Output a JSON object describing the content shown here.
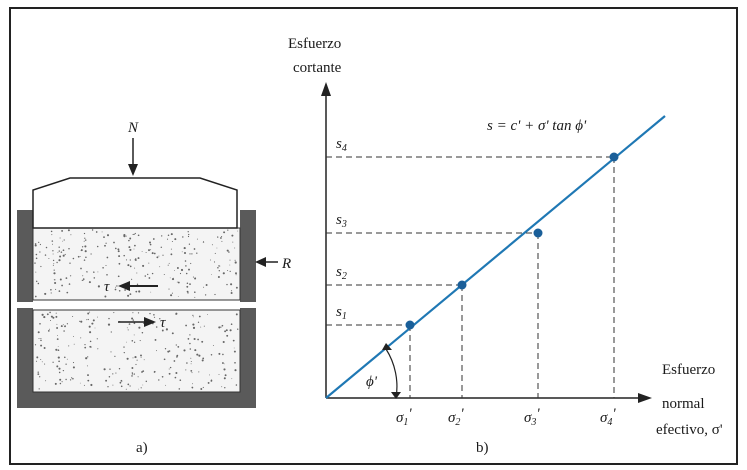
{
  "panel_a": {
    "caption": "a)",
    "normal_force": "N",
    "reaction_force": "R",
    "shear_top": "τ",
    "shear_bottom": "τ"
  },
  "panel_b": {
    "caption": "b)",
    "y_axis_label": [
      "Esfuerzo",
      "cortante"
    ],
    "x_axis_label": [
      "Esfuerzo",
      "normal",
      "efectivo, σ'"
    ],
    "equation": "s = c' + σ' tan ϕ'",
    "angle_label": "ϕ'",
    "y_ticks": [
      "s1",
      "s2",
      "s3",
      "s4"
    ],
    "x_ticks": [
      "σ1'",
      "σ2'",
      "σ3'",
      "σ4'"
    ],
    "line_color": "#1f78b4",
    "point_color": "#1a5f99"
  }
}
